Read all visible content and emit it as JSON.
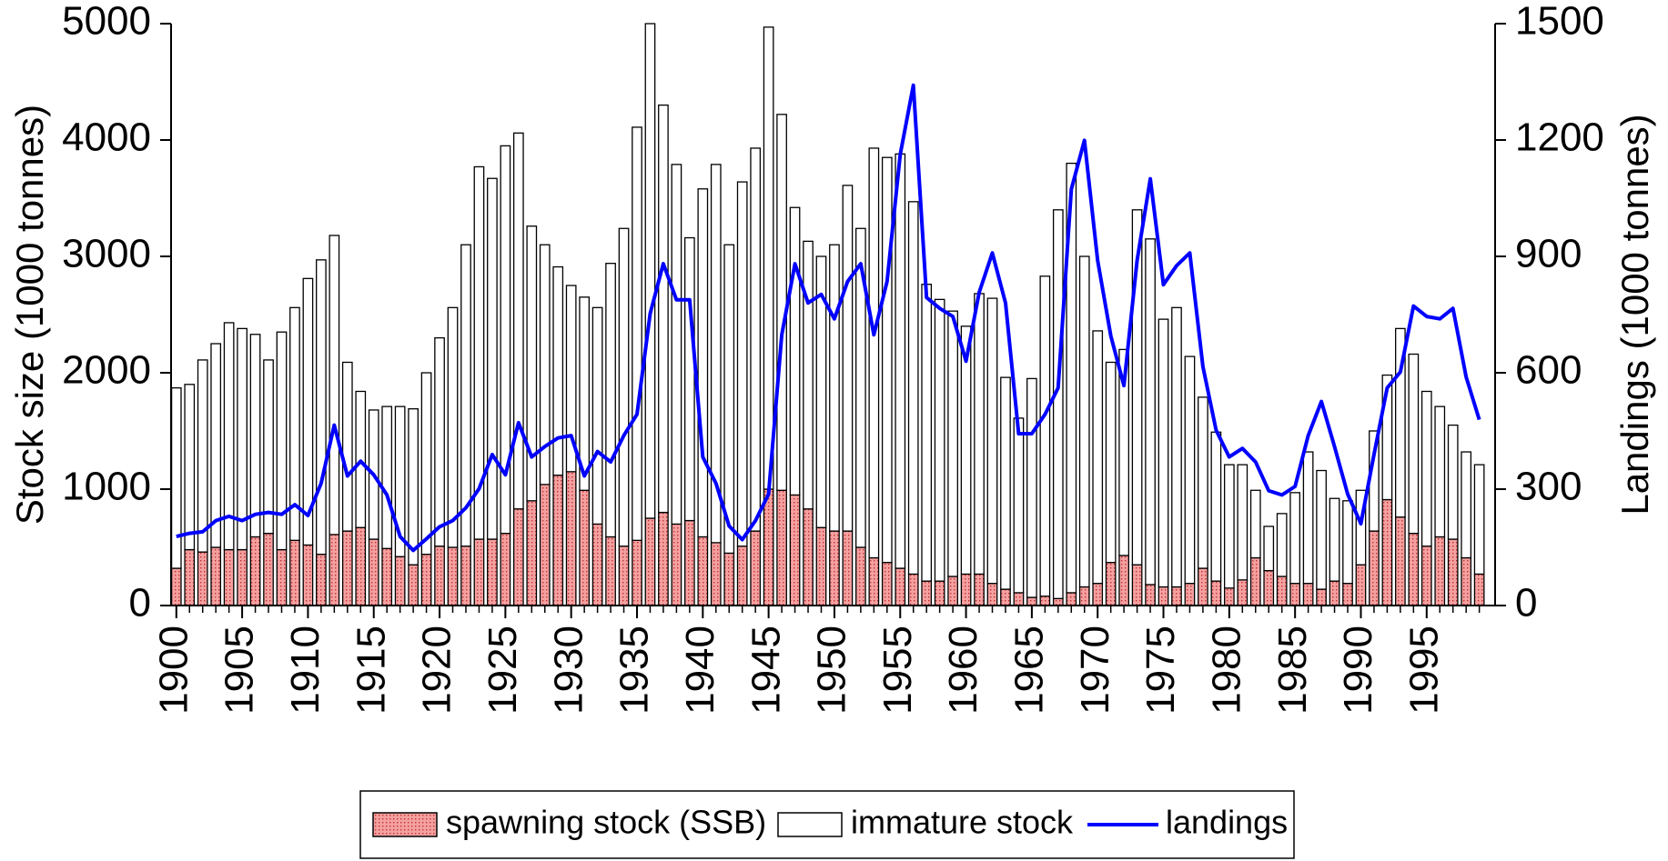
{
  "chart_data": {
    "type": "stacked-bar-line",
    "y_label": "Stock size (1000 tonnes)",
    "y2_label": "Landings (1000 tonnes)",
    "x": [
      1900,
      1901,
      1902,
      1903,
      1904,
      1905,
      1906,
      1907,
      1908,
      1909,
      1910,
      1911,
      1912,
      1913,
      1914,
      1915,
      1916,
      1917,
      1918,
      1919,
      1920,
      1921,
      1922,
      1923,
      1924,
      1925,
      1926,
      1927,
      1928,
      1929,
      1930,
      1931,
      1932,
      1933,
      1934,
      1935,
      1936,
      1937,
      1938,
      1939,
      1940,
      1941,
      1942,
      1943,
      1944,
      1945,
      1946,
      1947,
      1948,
      1949,
      1950,
      1951,
      1952,
      1953,
      1954,
      1955,
      1956,
      1957,
      1958,
      1959,
      1960,
      1961,
      1962,
      1963,
      1964,
      1965,
      1966,
      1967,
      1968,
      1969,
      1970,
      1971,
      1972,
      1973,
      1974,
      1975,
      1976,
      1977,
      1978,
      1979,
      1980,
      1981,
      1982,
      1983,
      1984,
      1985,
      1986,
      1987,
      1988,
      1989,
      1990,
      1991,
      1992,
      1993,
      1994,
      1995,
      1996,
      1997,
      1998,
      1999
    ],
    "xlim": [
      1899.6,
      2000.2
    ],
    "xticks": [
      1900,
      1905,
      1910,
      1915,
      1920,
      1925,
      1930,
      1935,
      1940,
      1945,
      1950,
      1955,
      1960,
      1965,
      1970,
      1975,
      1980,
      1985,
      1990,
      1995
    ],
    "ylim": [
      0,
      5000
    ],
    "yticks": [
      0,
      1000,
      2000,
      3000,
      4000,
      5000
    ],
    "y2lim": [
      0,
      1500
    ],
    "y2ticks": [
      0,
      300,
      600,
      900,
      1200,
      1500
    ],
    "series": [
      {
        "name": "spawning stock (SSB)",
        "kind": "bar",
        "color": "#f08080",
        "values": [
          320,
          480,
          460,
          500,
          480,
          480,
          590,
          620,
          480,
          560,
          520,
          440,
          610,
          640,
          670,
          570,
          490,
          420,
          350,
          440,
          510,
          500,
          510,
          570,
          570,
          620,
          830,
          900,
          1040,
          1120,
          1150,
          990,
          700,
          590,
          510,
          560,
          750,
          800,
          700,
          730,
          590,
          540,
          450,
          510,
          640,
          1000,
          990,
          950,
          830,
          670,
          640,
          640,
          500,
          410,
          370,
          320,
          270,
          210,
          210,
          250,
          270,
          270,
          190,
          140,
          110,
          70,
          80,
          60,
          110,
          160,
          190,
          370,
          430,
          350,
          180,
          160,
          160,
          190,
          320,
          210,
          150,
          220,
          410,
          300,
          250,
          190,
          190,
          140,
          210,
          190,
          350,
          640,
          910,
          760,
          620,
          510,
          590,
          570,
          410,
          270
        ]
      },
      {
        "name": "immature stock",
        "kind": "bar",
        "color": "#ffffff",
        "values": [
          1550,
          1420,
          1650,
          1750,
          1950,
          1900,
          1740,
          1490,
          1870,
          2000,
          2290,
          2530,
          2570,
          1450,
          1170,
          1110,
          1220,
          1290,
          1340,
          1560,
          1790,
          2060,
          2590,
          3200,
          3100,
          3330,
          3230,
          2360,
          2060,
          1790,
          1600,
          1660,
          1860,
          2350,
          2730,
          3550,
          4250,
          3500,
          3090,
          2430,
          2990,
          3250,
          2650,
          3130,
          3290,
          3970,
          3230,
          2470,
          2300,
          2330,
          2460,
          2970,
          2740,
          3520,
          3480,
          3560,
          3200,
          2550,
          2420,
          2280,
          2130,
          2410,
          2450,
          1820,
          1500,
          1880,
          2750,
          3340,
          3690,
          2840,
          2170,
          1720,
          1770,
          3050,
          2970,
          2300,
          2400,
          1950,
          1470,
          1280,
          1060,
          990,
          580,
          380,
          540,
          780,
          1130,
          1020,
          710,
          710,
          640,
          860,
          1070,
          1620,
          1540,
          1330,
          1120,
          980,
          910,
          940
        ]
      },
      {
        "name": "landings",
        "kind": "line",
        "axis": "y2",
        "color": "#0000ff",
        "values": [
          178,
          186,
          190,
          219,
          230,
          219,
          235,
          240,
          235,
          260,
          232,
          315,
          465,
          334,
          372,
          337,
          285,
          178,
          142,
          172,
          203,
          219,
          252,
          301,
          389,
          337,
          471,
          383,
          410,
          432,
          438,
          334,
          397,
          370,
          438,
          493,
          753,
          881,
          788,
          788,
          383,
          315,
          205,
          170,
          219,
          287,
          698,
          881,
          780,
          802,
          739,
          835,
          881,
          698,
          835,
          1163,
          1341,
          794,
          766,
          745,
          630,
          807,
          909,
          780,
          443,
          443,
          493,
          561,
          1073,
          1199,
          890,
          695,
          567,
          890,
          1100,
          827,
          876,
          909,
          616,
          452,
          383,
          405,
          370,
          296,
          285,
          307,
          438,
          526,
          410,
          287,
          211,
          389,
          561,
          602,
          772,
          745,
          739,
          766,
          589,
          479
        ]
      }
    ]
  }
}
